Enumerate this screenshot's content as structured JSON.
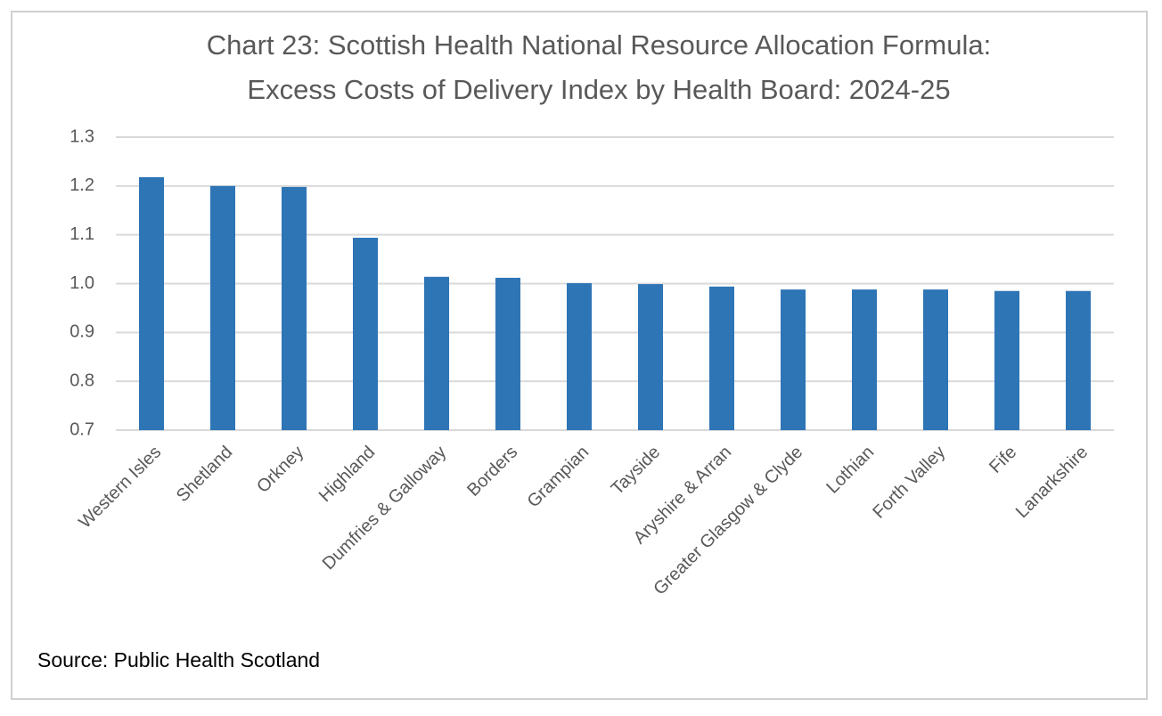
{
  "chart_data": {
    "type": "bar",
    "title": "Chart 23: Scottish Health National Resource Allocation Formula: Excess Costs of Delivery Index by Health Board: 2024-25",
    "categories": [
      "Western Isles",
      "Shetland",
      "Orkney",
      "Highland",
      "Dumfries & Galloway",
      "Borders",
      "Grampian",
      "Tayside",
      "Aryshire & Arran",
      "Greater Glasgow & Clyde",
      "Lothian",
      "Forth Valley",
      "Fife",
      "Lanarkshire"
    ],
    "values": [
      1.218,
      1.2,
      1.198,
      1.094,
      1.014,
      1.012,
      1.001,
      0.999,
      0.994,
      0.988,
      0.988,
      0.988,
      0.985,
      0.985
    ],
    "color": "#2e75b6",
    "ylim": [
      0.7,
      1.3
    ],
    "yticks": [
      0.7,
      0.8,
      0.9,
      {
        "value": 1,
        "label": "1.0"
      },
      1.1,
      1.2,
      1.3
    ],
    "grid": true,
    "source": "Source: Public Health Scotland"
  }
}
